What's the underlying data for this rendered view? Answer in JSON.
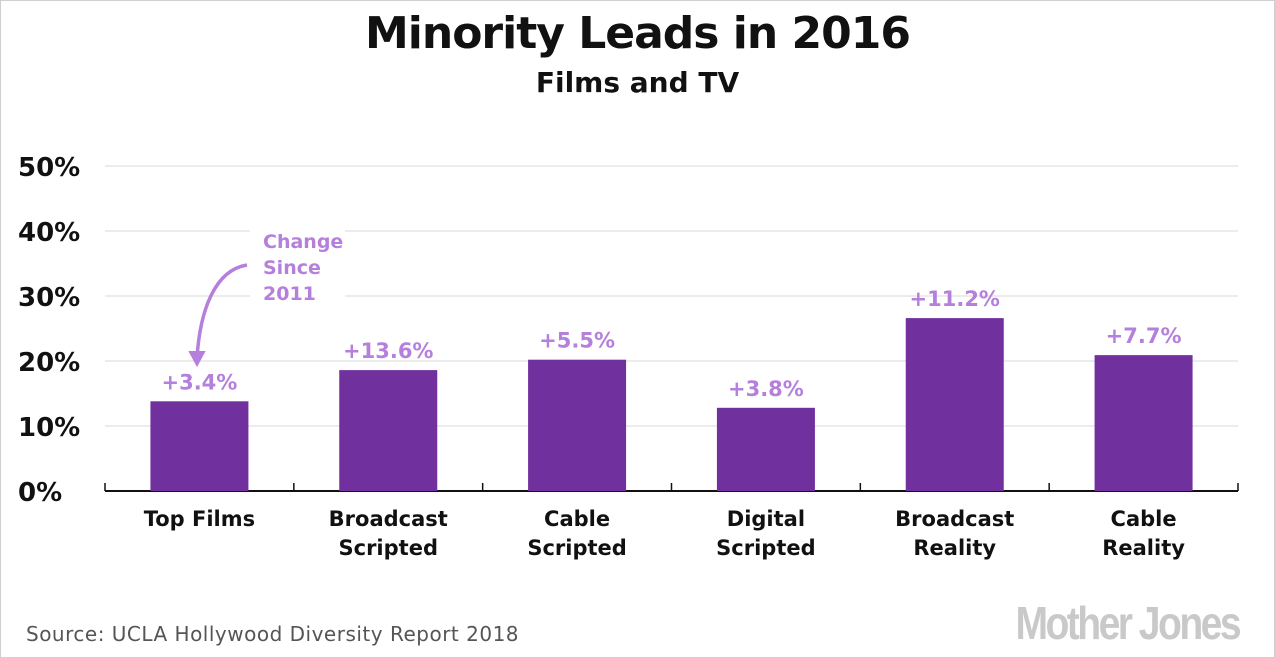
{
  "chart_data": {
    "type": "bar",
    "title": "Minority Leads in 2016",
    "subtitle": "Films and TV",
    "categories": [
      [
        "Top Films"
      ],
      [
        "Broadcast",
        "Scripted"
      ],
      [
        "Cable",
        "Scripted"
      ],
      [
        "Digital",
        "Scripted"
      ],
      [
        "Broadcast",
        "Reality"
      ],
      [
        "Cable",
        "Reality"
      ]
    ],
    "values": [
      13.8,
      18.6,
      20.2,
      12.8,
      26.6,
      20.9
    ],
    "data_labels": [
      "+3.4%",
      "+13.6%",
      "+5.5%",
      "+3.8%",
      "+11.2%",
      "+7.7%"
    ],
    "ylim": [
      0,
      50
    ],
    "yticks": [
      0,
      10,
      20,
      30,
      40,
      50
    ],
    "ytick_labels": [
      "0%",
      "10%",
      "20%",
      "30%",
      "40%",
      "50%"
    ],
    "grid": true,
    "annotation": [
      "Change",
      "Since",
      "2011"
    ],
    "colors": {
      "bar": "#70309d",
      "label": "#b57fdc",
      "grid": "#e6e6e6"
    }
  },
  "source": "Source: UCLA Hollywood Diversity Report 2018",
  "logo": "Mother Jones"
}
